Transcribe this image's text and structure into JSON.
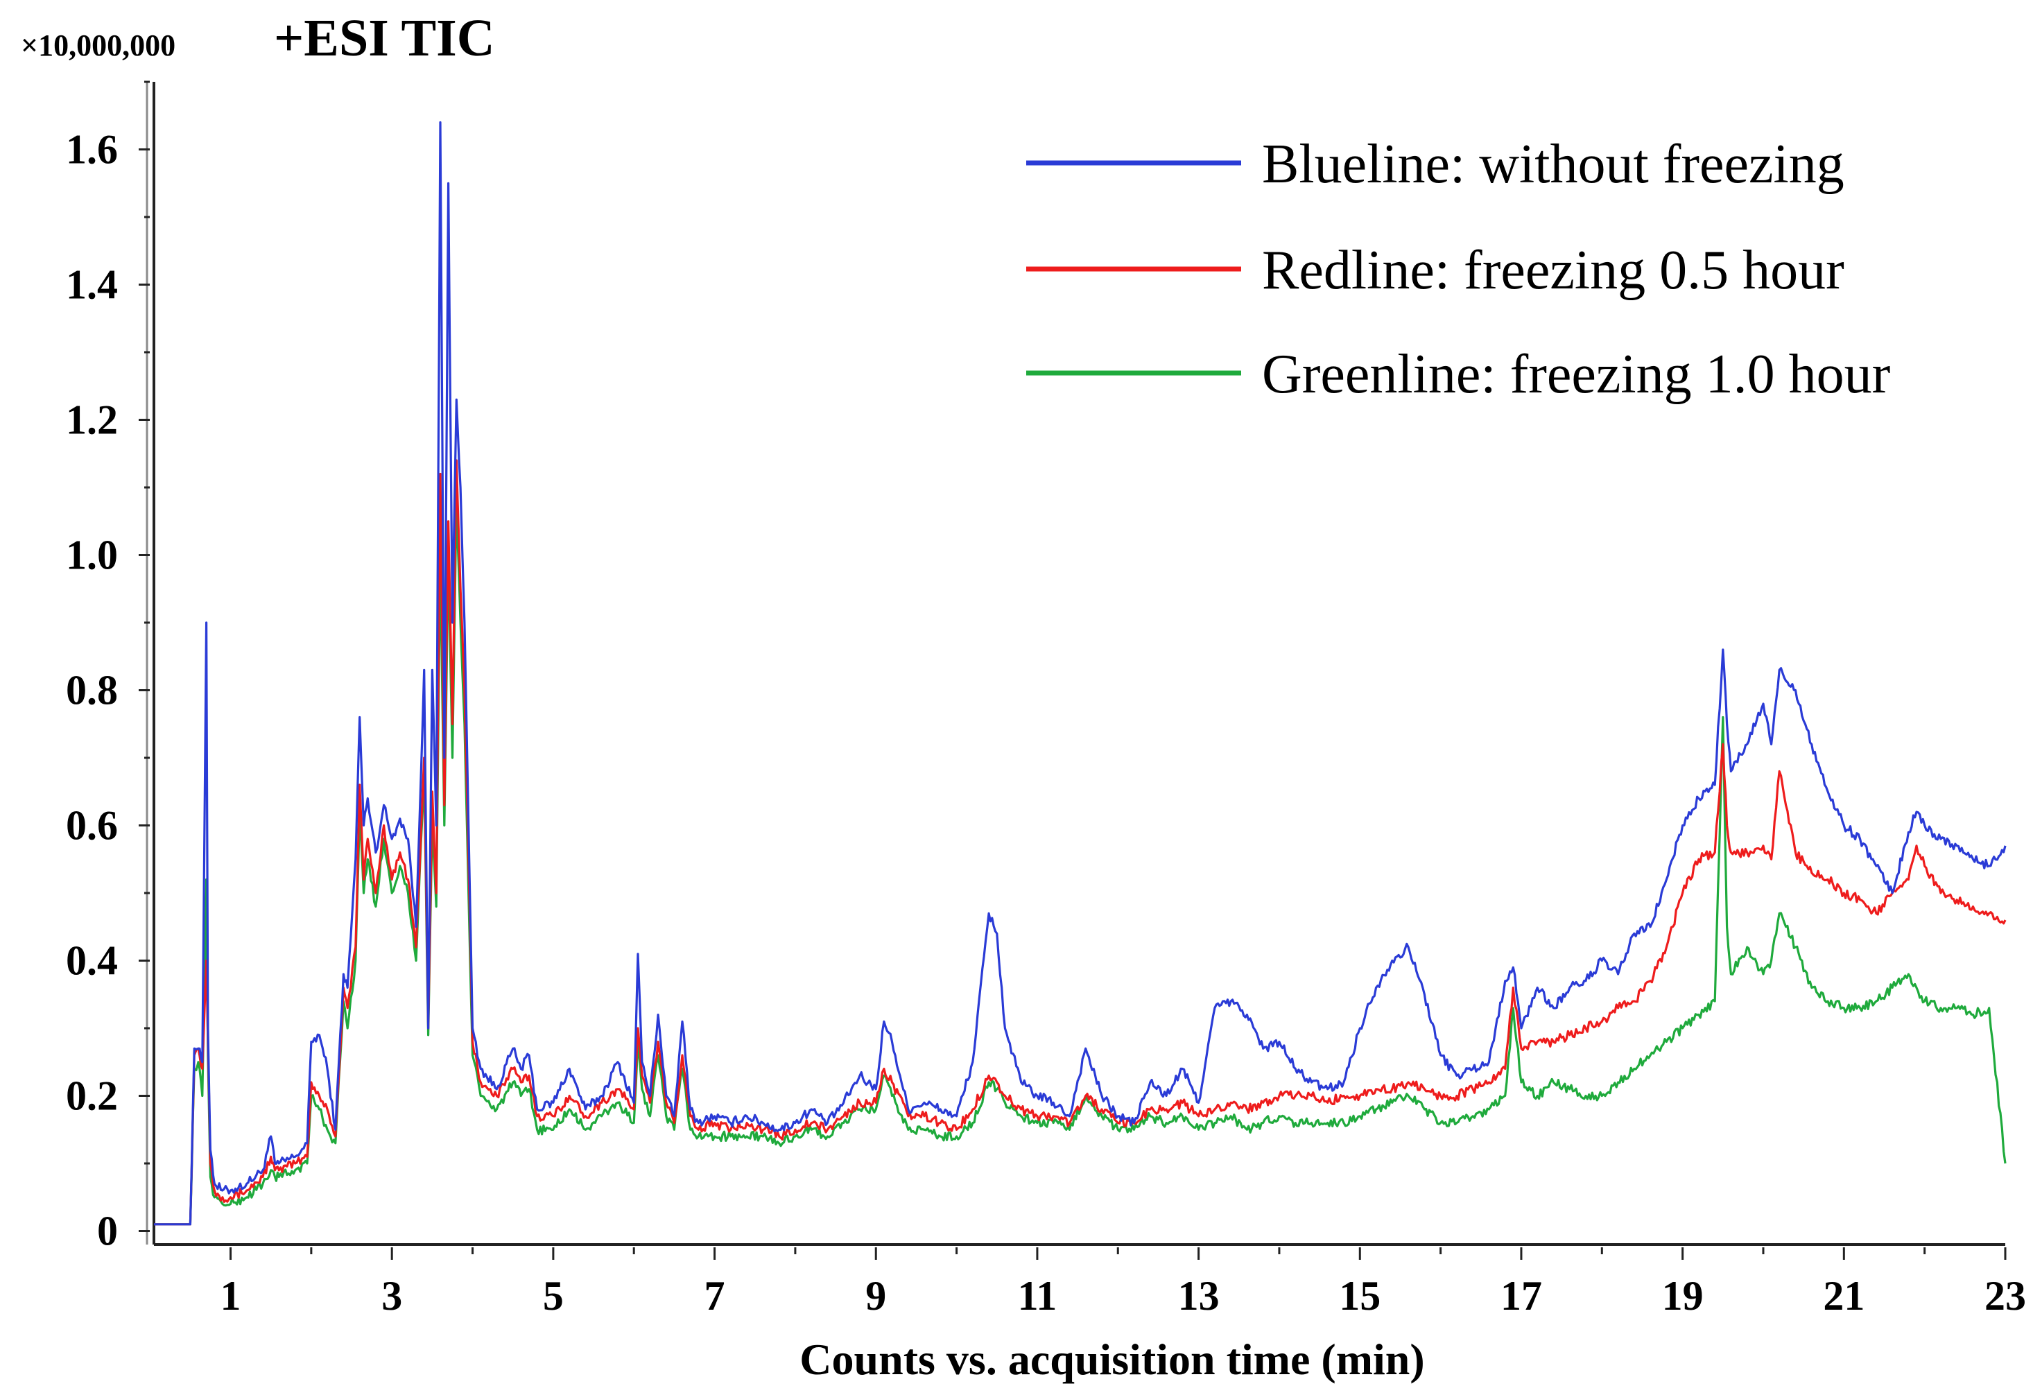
{
  "chart_data": {
    "type": "line",
    "title": "+ESI TIC",
    "y_scale_label": "×10,000,000",
    "xlabel": "Counts vs. acquisition time (min)",
    "ylabel": "",
    "xlim": [
      0.05,
      23
    ],
    "ylim": [
      -0.02,
      1.7
    ],
    "x_ticks": [
      1,
      3,
      5,
      7,
      9,
      11,
      13,
      15,
      17,
      19,
      21,
      23
    ],
    "x_tick_labels": [
      "1",
      "3",
      "5",
      "7",
      "9",
      "11",
      "13",
      "15",
      "17",
      "19",
      "21",
      "23"
    ],
    "y_ticks": [
      0,
      0.2,
      0.4,
      0.6,
      0.8,
      1.0,
      1.2,
      1.4,
      1.6
    ],
    "y_tick_labels": [
      "0",
      "0.2",
      "0.4",
      "0.6",
      "0.8",
      "1.0",
      "1.2",
      "1.4",
      "1.6"
    ],
    "legend_position": "top-right",
    "series": [
      {
        "name": "Blueline: without freezing",
        "color": "#2a3bd6",
        "x": [
          0.05,
          0.3,
          0.5,
          0.55,
          0.6,
          0.65,
          0.7,
          0.72,
          0.75,
          0.8,
          0.9,
          1.0,
          1.2,
          1.4,
          1.5,
          1.55,
          1.6,
          1.8,
          1.95,
          2.0,
          2.1,
          2.2,
          2.3,
          2.4,
          2.45,
          2.55,
          2.6,
          2.65,
          2.7,
          2.8,
          2.9,
          3.0,
          3.1,
          3.2,
          3.3,
          3.4,
          3.45,
          3.5,
          3.55,
          3.6,
          3.65,
          3.7,
          3.75,
          3.8,
          3.85,
          3.9,
          3.95,
          4.0,
          4.1,
          4.3,
          4.5,
          4.6,
          4.7,
          4.8,
          5.0,
          5.2,
          5.4,
          5.6,
          5.8,
          6.0,
          6.05,
          6.1,
          6.2,
          6.3,
          6.4,
          6.5,
          6.6,
          6.7,
          6.8,
          7.0,
          7.2,
          7.4,
          7.6,
          7.8,
          8.0,
          8.2,
          8.4,
          8.6,
          8.8,
          9.0,
          9.1,
          9.2,
          9.4,
          9.6,
          9.8,
          10.0,
          10.2,
          10.4,
          10.5,
          10.6,
          10.8,
          11.0,
          11.2,
          11.4,
          11.6,
          11.8,
          12.0,
          12.2,
          12.4,
          12.6,
          12.8,
          13.0,
          13.2,
          13.4,
          13.6,
          13.8,
          14.0,
          14.2,
          14.4,
          14.6,
          14.8,
          15.0,
          15.2,
          15.4,
          15.6,
          15.8,
          16.0,
          16.2,
          16.4,
          16.6,
          16.8,
          16.9,
          17.0,
          17.2,
          17.4,
          17.6,
          17.8,
          18.0,
          18.2,
          18.4,
          18.6,
          18.8,
          19.0,
          19.2,
          19.4,
          19.5,
          19.55,
          19.6,
          19.8,
          20.0,
          20.1,
          20.2,
          20.4,
          20.6,
          20.8,
          21.0,
          21.2,
          21.4,
          21.6,
          21.8,
          21.9,
          22.0,
          22.2,
          22.4,
          22.6,
          22.8,
          23.0
        ],
        "values": [
          0.01,
          0.01,
          0.01,
          0.27,
          0.27,
          0.25,
          0.9,
          0.3,
          0.12,
          0.07,
          0.06,
          0.06,
          0.07,
          0.09,
          0.14,
          0.1,
          0.1,
          0.11,
          0.13,
          0.28,
          0.29,
          0.24,
          0.15,
          0.38,
          0.36,
          0.55,
          0.76,
          0.6,
          0.64,
          0.56,
          0.63,
          0.58,
          0.61,
          0.58,
          0.45,
          0.83,
          0.3,
          0.83,
          0.6,
          1.64,
          0.7,
          1.55,
          0.9,
          1.23,
          1.1,
          0.9,
          0.6,
          0.3,
          0.24,
          0.21,
          0.27,
          0.24,
          0.26,
          0.18,
          0.19,
          0.24,
          0.18,
          0.2,
          0.25,
          0.19,
          0.41,
          0.25,
          0.2,
          0.32,
          0.2,
          0.17,
          0.31,
          0.18,
          0.16,
          0.17,
          0.16,
          0.17,
          0.16,
          0.15,
          0.16,
          0.18,
          0.16,
          0.19,
          0.23,
          0.21,
          0.31,
          0.28,
          0.18,
          0.19,
          0.18,
          0.17,
          0.25,
          0.47,
          0.44,
          0.3,
          0.22,
          0.2,
          0.19,
          0.17,
          0.27,
          0.2,
          0.17,
          0.16,
          0.22,
          0.2,
          0.24,
          0.19,
          0.33,
          0.34,
          0.32,
          0.27,
          0.28,
          0.24,
          0.22,
          0.21,
          0.22,
          0.3,
          0.36,
          0.4,
          0.42,
          0.35,
          0.26,
          0.23,
          0.24,
          0.25,
          0.37,
          0.39,
          0.3,
          0.36,
          0.33,
          0.36,
          0.37,
          0.4,
          0.38,
          0.44,
          0.45,
          0.52,
          0.6,
          0.64,
          0.66,
          0.86,
          0.75,
          0.68,
          0.72,
          0.78,
          0.72,
          0.83,
          0.8,
          0.72,
          0.65,
          0.6,
          0.58,
          0.54,
          0.5,
          0.59,
          0.62,
          0.6,
          0.58,
          0.57,
          0.55,
          0.54,
          0.57
        ]
      },
      {
        "name": "Redline: freezing 0.5 hour",
        "color": "#ee1c1c",
        "x": [
          0.05,
          0.3,
          0.5,
          0.55,
          0.6,
          0.65,
          0.7,
          0.72,
          0.75,
          0.8,
          0.9,
          1.0,
          1.2,
          1.4,
          1.5,
          1.55,
          1.6,
          1.8,
          1.95,
          2.0,
          2.1,
          2.2,
          2.3,
          2.4,
          2.45,
          2.55,
          2.6,
          2.65,
          2.7,
          2.8,
          2.9,
          3.0,
          3.1,
          3.2,
          3.3,
          3.4,
          3.45,
          3.5,
          3.55,
          3.6,
          3.65,
          3.7,
          3.75,
          3.8,
          3.85,
          3.9,
          3.95,
          4.0,
          4.1,
          4.3,
          4.5,
          4.6,
          4.7,
          4.8,
          5.0,
          5.2,
          5.4,
          5.6,
          5.8,
          6.0,
          6.05,
          6.1,
          6.2,
          6.3,
          6.4,
          6.5,
          6.6,
          6.7,
          6.8,
          7.0,
          7.2,
          7.4,
          7.6,
          7.8,
          8.0,
          8.2,
          8.4,
          8.6,
          8.8,
          9.0,
          9.1,
          9.2,
          9.4,
          9.6,
          9.8,
          10.0,
          10.2,
          10.4,
          10.5,
          10.6,
          10.8,
          11.0,
          11.2,
          11.4,
          11.6,
          11.8,
          12.0,
          12.2,
          12.4,
          12.6,
          12.8,
          13.0,
          13.2,
          13.4,
          13.6,
          13.8,
          14.0,
          14.2,
          14.4,
          14.6,
          14.8,
          15.0,
          15.2,
          15.4,
          15.6,
          15.8,
          16.0,
          16.2,
          16.4,
          16.6,
          16.8,
          16.9,
          17.0,
          17.2,
          17.4,
          17.6,
          17.8,
          18.0,
          18.2,
          18.4,
          18.6,
          18.8,
          19.0,
          19.2,
          19.4,
          19.5,
          19.55,
          19.6,
          19.8,
          20.0,
          20.1,
          20.2,
          20.4,
          20.6,
          20.8,
          21.0,
          21.2,
          21.4,
          21.6,
          21.8,
          21.9,
          22.0,
          22.2,
          22.4,
          22.6,
          22.8,
          23.0
        ],
        "values": [
          0.01,
          0.01,
          0.01,
          0.26,
          0.27,
          0.24,
          0.4,
          0.28,
          0.1,
          0.06,
          0.05,
          0.05,
          0.06,
          0.08,
          0.11,
          0.09,
          0.09,
          0.1,
          0.11,
          0.22,
          0.2,
          0.18,
          0.14,
          0.36,
          0.33,
          0.42,
          0.66,
          0.52,
          0.58,
          0.5,
          0.6,
          0.52,
          0.56,
          0.52,
          0.42,
          0.7,
          0.3,
          0.65,
          0.5,
          1.12,
          0.63,
          1.05,
          0.75,
          1.14,
          0.95,
          0.8,
          0.55,
          0.28,
          0.22,
          0.2,
          0.24,
          0.22,
          0.23,
          0.17,
          0.17,
          0.2,
          0.17,
          0.19,
          0.21,
          0.18,
          0.3,
          0.23,
          0.19,
          0.28,
          0.19,
          0.16,
          0.26,
          0.17,
          0.15,
          0.16,
          0.15,
          0.16,
          0.15,
          0.14,
          0.15,
          0.16,
          0.15,
          0.17,
          0.19,
          0.19,
          0.24,
          0.22,
          0.17,
          0.17,
          0.16,
          0.15,
          0.18,
          0.23,
          0.22,
          0.2,
          0.18,
          0.17,
          0.17,
          0.16,
          0.2,
          0.18,
          0.16,
          0.16,
          0.18,
          0.18,
          0.19,
          0.17,
          0.18,
          0.19,
          0.18,
          0.19,
          0.2,
          0.2,
          0.2,
          0.19,
          0.2,
          0.2,
          0.21,
          0.21,
          0.22,
          0.21,
          0.2,
          0.2,
          0.21,
          0.22,
          0.24,
          0.36,
          0.27,
          0.28,
          0.28,
          0.29,
          0.3,
          0.31,
          0.33,
          0.34,
          0.37,
          0.42,
          0.5,
          0.55,
          0.56,
          0.72,
          0.6,
          0.56,
          0.56,
          0.57,
          0.55,
          0.68,
          0.56,
          0.53,
          0.52,
          0.5,
          0.49,
          0.47,
          0.5,
          0.52,
          0.57,
          0.54,
          0.5,
          0.49,
          0.48,
          0.47,
          0.46
        ]
      },
      {
        "name": "Greenline: freezing 1.0 hour",
        "color": "#1faa3c",
        "x": [
          0.05,
          0.3,
          0.5,
          0.55,
          0.6,
          0.65,
          0.7,
          0.72,
          0.75,
          0.8,
          0.9,
          1.0,
          1.2,
          1.4,
          1.5,
          1.55,
          1.6,
          1.8,
          1.95,
          2.0,
          2.1,
          2.2,
          2.3,
          2.4,
          2.45,
          2.55,
          2.6,
          2.65,
          2.7,
          2.8,
          2.9,
          3.0,
          3.1,
          3.2,
          3.3,
          3.4,
          3.45,
          3.5,
          3.55,
          3.6,
          3.65,
          3.7,
          3.75,
          3.8,
          3.85,
          3.9,
          3.95,
          4.0,
          4.1,
          4.3,
          4.5,
          4.6,
          4.7,
          4.8,
          5.0,
          5.2,
          5.4,
          5.6,
          5.8,
          6.0,
          6.05,
          6.1,
          6.2,
          6.3,
          6.4,
          6.5,
          6.6,
          6.7,
          6.8,
          7.0,
          7.2,
          7.4,
          7.6,
          7.8,
          8.0,
          8.2,
          8.4,
          8.6,
          8.8,
          9.0,
          9.1,
          9.2,
          9.4,
          9.6,
          9.8,
          10.0,
          10.2,
          10.4,
          10.5,
          10.6,
          10.8,
          11.0,
          11.2,
          11.4,
          11.6,
          11.8,
          12.0,
          12.2,
          12.4,
          12.6,
          12.8,
          13.0,
          13.2,
          13.4,
          13.6,
          13.8,
          14.0,
          14.2,
          14.4,
          14.6,
          14.8,
          15.0,
          15.2,
          15.4,
          15.6,
          15.8,
          16.0,
          16.2,
          16.4,
          16.6,
          16.8,
          16.9,
          17.0,
          17.2,
          17.4,
          17.6,
          17.8,
          18.0,
          18.2,
          18.4,
          18.6,
          18.8,
          19.0,
          19.2,
          19.4,
          19.5,
          19.55,
          19.6,
          19.8,
          20.0,
          20.1,
          20.2,
          20.4,
          20.6,
          20.8,
          21.0,
          21.2,
          21.4,
          21.6,
          21.8,
          21.9,
          22.0,
          22.2,
          22.4,
          22.6,
          22.8,
          23.0
        ],
        "values": [
          0.01,
          0.01,
          0.01,
          0.24,
          0.25,
          0.2,
          0.52,
          0.26,
          0.08,
          0.05,
          0.04,
          0.04,
          0.05,
          0.07,
          0.09,
          0.08,
          0.08,
          0.09,
          0.1,
          0.2,
          0.18,
          0.15,
          0.13,
          0.34,
          0.3,
          0.4,
          0.62,
          0.5,
          0.55,
          0.48,
          0.58,
          0.5,
          0.54,
          0.5,
          0.4,
          0.68,
          0.29,
          0.6,
          0.48,
          1.0,
          0.6,
          1.0,
          0.7,
          1.08,
          0.9,
          0.75,
          0.5,
          0.26,
          0.2,
          0.18,
          0.22,
          0.2,
          0.21,
          0.15,
          0.15,
          0.18,
          0.15,
          0.17,
          0.19,
          0.16,
          0.28,
          0.21,
          0.17,
          0.26,
          0.17,
          0.15,
          0.24,
          0.15,
          0.14,
          0.14,
          0.14,
          0.14,
          0.14,
          0.13,
          0.14,
          0.15,
          0.14,
          0.16,
          0.18,
          0.18,
          0.23,
          0.2,
          0.15,
          0.15,
          0.14,
          0.14,
          0.16,
          0.22,
          0.21,
          0.19,
          0.17,
          0.16,
          0.16,
          0.15,
          0.2,
          0.17,
          0.15,
          0.15,
          0.17,
          0.16,
          0.17,
          0.15,
          0.16,
          0.17,
          0.15,
          0.16,
          0.17,
          0.16,
          0.16,
          0.16,
          0.16,
          0.17,
          0.18,
          0.19,
          0.2,
          0.18,
          0.16,
          0.16,
          0.17,
          0.18,
          0.2,
          0.33,
          0.22,
          0.2,
          0.22,
          0.21,
          0.2,
          0.2,
          0.22,
          0.24,
          0.26,
          0.28,
          0.3,
          0.32,
          0.34,
          0.76,
          0.45,
          0.38,
          0.42,
          0.38,
          0.4,
          0.47,
          0.42,
          0.36,
          0.34,
          0.33,
          0.33,
          0.34,
          0.36,
          0.38,
          0.36,
          0.34,
          0.33,
          0.33,
          0.32,
          0.33,
          0.1
        ]
      }
    ]
  }
}
